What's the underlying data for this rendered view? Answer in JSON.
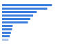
{
  "chart_data": {
    "type": "bar",
    "orientation": "horizontal",
    "categories": [
      null,
      null,
      null,
      null,
      null,
      null,
      null,
      null,
      null,
      null,
      null
    ],
    "values": [
      85,
      77,
      59,
      53,
      48,
      44,
      18,
      17,
      15,
      13,
      11
    ],
    "colors": [
      "#3b7ddd",
      "#3b7ddd",
      "#3b7ddd",
      "#3b7ddd",
      "#3b7ddd",
      "#3b7ddd",
      "#3b7ddd",
      "#3b7ddd",
      "#3b7ddd",
      "#3b7ddd",
      "#a7c4ee"
    ],
    "xlim": [
      0,
      100
    ],
    "grid": false,
    "tick_labels": false
  }
}
